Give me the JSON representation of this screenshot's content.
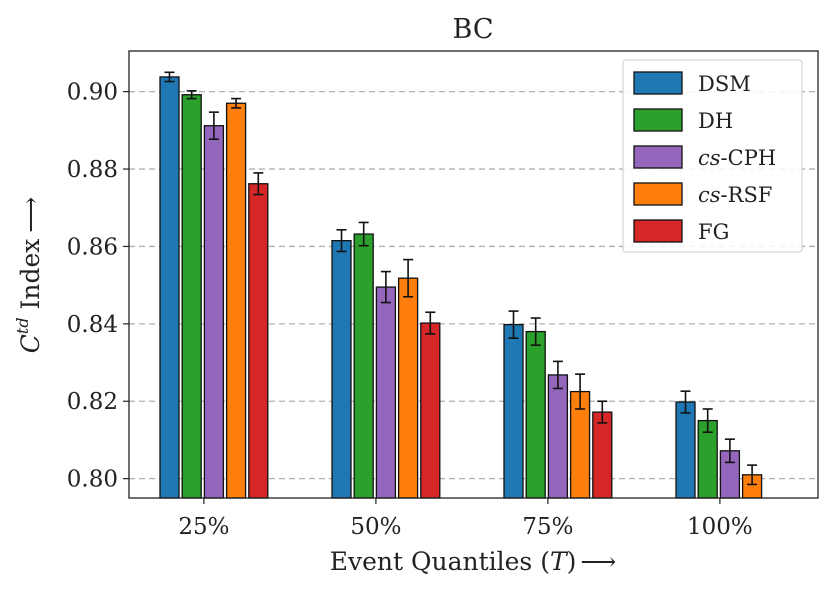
{
  "chart_data": {
    "type": "bar",
    "title": "BC",
    "xlabel": {
      "prefix": "Event Quantiles (",
      "var": "T",
      "suffix": ")",
      "arrow": "⟶"
    },
    "ylabel": {
      "var": "C",
      "sup": "td",
      "suffix": " Index",
      "arrow": "⟶"
    },
    "categories": [
      "25%",
      "50%",
      "75%",
      "100%"
    ],
    "ylim": [
      0.795,
      0.9105
    ],
    "yticks": [
      "0.80",
      "0.82",
      "0.84",
      "0.86",
      "0.88",
      "0.90"
    ],
    "ytick_values": [
      0.8,
      0.82,
      0.84,
      0.86,
      0.88,
      0.9
    ],
    "grid": "horizontal-dashed",
    "legend_position": "top-right",
    "series": [
      {
        "name": "DSM",
        "italic_prefix": "",
        "plain": "DSM",
        "color": "#1f77b4",
        "values": [
          0.9038,
          0.8615,
          0.8398,
          0.8198
        ],
        "errors": [
          0.0012,
          0.0028,
          0.0035,
          0.0028
        ]
      },
      {
        "name": "DH",
        "italic_prefix": "",
        "plain": "DH",
        "color": "#2ca02c",
        "values": [
          0.8992,
          0.8632,
          0.838,
          0.815
        ],
        "errors": [
          0.001,
          0.003,
          0.0035,
          0.003
        ]
      },
      {
        "name": "cs-CPH",
        "italic_prefix": "cs",
        "plain": "-CPH",
        "color": "#9467bd",
        "values": [
          0.8912,
          0.8495,
          0.8268,
          0.8072
        ],
        "errors": [
          0.0035,
          0.004,
          0.0035,
          0.003
        ]
      },
      {
        "name": "cs-RSF",
        "italic_prefix": "cs",
        "plain": "-RSF",
        "color": "#ff7f0e",
        "values": [
          0.897,
          0.8518,
          0.8225,
          0.801
        ],
        "errors": [
          0.0012,
          0.0048,
          0.0045,
          0.0025
        ]
      },
      {
        "name": "FG",
        "italic_prefix": "",
        "plain": "FG",
        "color": "#d62728",
        "values": [
          0.8762,
          0.8402,
          0.8172,
          null
        ],
        "errors": [
          0.0028,
          0.0028,
          0.0028,
          null
        ]
      }
    ]
  }
}
